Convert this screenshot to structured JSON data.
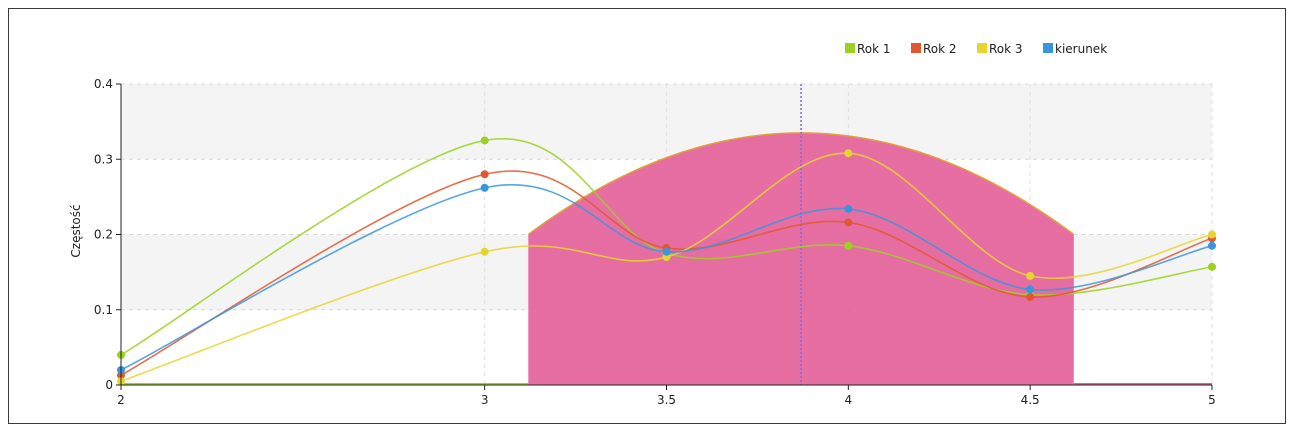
{
  "chart_data": {
    "type": "line",
    "ylabel": "Częstość",
    "xlabel": "",
    "x_ticks": [
      "2",
      "3",
      "3.5",
      "4",
      "4.5",
      "5"
    ],
    "y_ticks": [
      "0",
      "0.1",
      "0.2",
      "0.3",
      "0.4"
    ],
    "xlim": [
      2,
      5
    ],
    "ylim": [
      0,
      0.4
    ],
    "grid": true,
    "legend_position": "top-right",
    "x": [
      2,
      3,
      3.5,
      4,
      4.5,
      5
    ],
    "series": [
      {
        "name": "Rok 1",
        "color": "#9bd120",
        "values": [
          0.04,
          0.325,
          0.175,
          0.185,
          0.12,
          0.157
        ]
      },
      {
        "name": "Rok 2",
        "color": "#e2582e",
        "values": [
          0.013,
          0.28,
          0.182,
          0.216,
          0.117,
          0.195
        ]
      },
      {
        "name": "Rok 3",
        "color": "#e6d52e",
        "values": [
          0.005,
          0.177,
          0.17,
          0.308,
          0.145,
          0.2
        ]
      },
      {
        "name": "kierunek",
        "color": "#3a95dd",
        "values": [
          0.02,
          0.262,
          0.177,
          0.234,
          0.127,
          0.185
        ]
      }
    ],
    "distribution": {
      "color": "#e45e98",
      "x_start": 3.12,
      "x_end": 4.62,
      "edge_value": 0.2,
      "peak_x": 3.87,
      "peak_value": 0.335
    },
    "mean_marker_x": 3.87,
    "mean_marker_color": "#7a6ae8"
  }
}
